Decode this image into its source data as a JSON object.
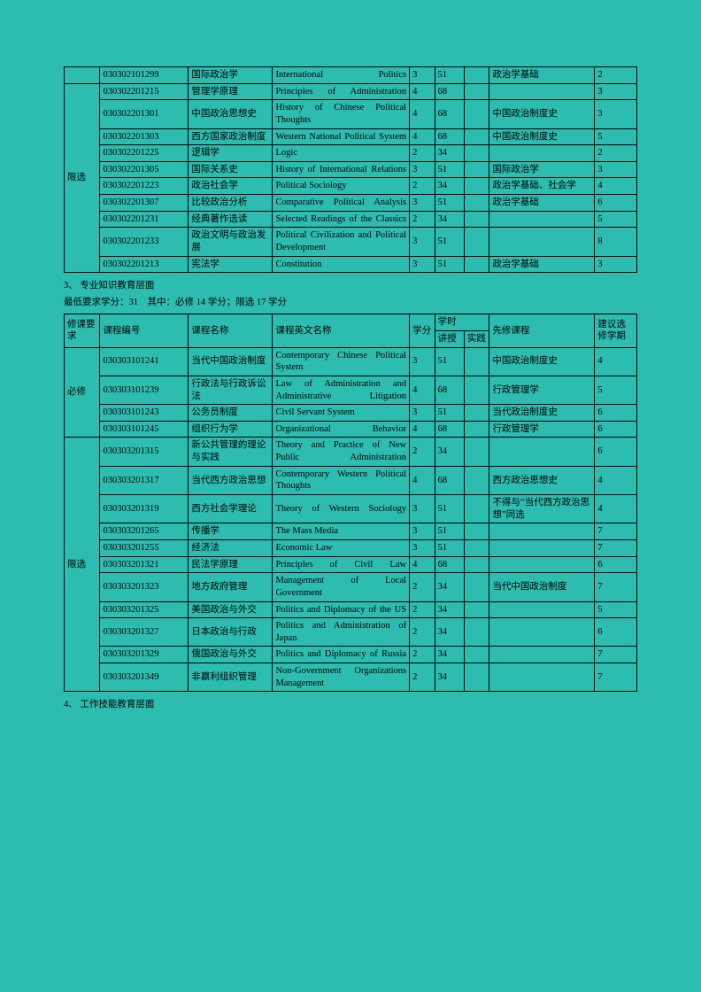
{
  "table1": {
    "rows": [
      {
        "cat": "",
        "code": "030302101299",
        "cn": "国际政治学",
        "en": "International Politics",
        "credit": "3",
        "hours": "51",
        "pra": "",
        "pre": "政治学基础",
        "sem": "2"
      },
      {
        "cat": "限选",
        "catspan": 10,
        "code": "030302201215",
        "cn": "管理学原理",
        "en": "Principles of Administration",
        "credit": "4",
        "hours": "68",
        "pra": "",
        "pre": "",
        "sem": "3"
      },
      {
        "code": "030302201301",
        "cn": "中国政治思想史",
        "en": "History of Chinese Political Thoughts",
        "credit": "4",
        "hours": "68",
        "pra": "",
        "pre": "中国政治制度史",
        "sem": "3"
      },
      {
        "code": "030302201303",
        "cn": "西方国家政治制度",
        "en": "Western National Political System",
        "credit": "4",
        "hours": "68",
        "pra": "",
        "pre": "中国政治制度史",
        "sem": "5"
      },
      {
        "code": "030302201225",
        "cn": "逻辑学",
        "en": "Logic",
        "credit": "2",
        "hours": "34",
        "pra": "",
        "pre": "",
        "sem": "2",
        "enLeft": true
      },
      {
        "code": "030302201305",
        "cn": "国际关系史",
        "en": "History of International Relations",
        "credit": "3",
        "hours": "51",
        "pra": "",
        "pre": "国际政治学",
        "sem": "3"
      },
      {
        "code": "030302201223",
        "cn": "政治社会学",
        "en": "Political Sociology",
        "credit": "2",
        "hours": "34",
        "pra": "",
        "pre": "政治学基础、社会学",
        "sem": "4",
        "enLeft": true
      },
      {
        "code": "030302201307",
        "cn": "比较政治分析",
        "en": "Comparative Political Analysis",
        "credit": "3",
        "hours": "51",
        "pra": "",
        "pre": "政治学基础",
        "sem": "6"
      },
      {
        "code": "030302201231",
        "cn": "经典著作选读",
        "en": "Selected Readings of the Classics",
        "credit": "2",
        "hours": "34",
        "pra": "",
        "pre": "",
        "sem": "5"
      },
      {
        "code": "030302201233",
        "cn": "政治文明与政治发展",
        "en": "Political Civilization and Political Development",
        "credit": "3",
        "hours": "51",
        "pra": "",
        "pre": "",
        "sem": "8"
      },
      {
        "code": "030302201213",
        "cn": "宪法学",
        "en": "Constitution",
        "credit": "3",
        "hours": "51",
        "pra": "",
        "pre": "政治学基础",
        "sem": "3",
        "enLeft": true
      }
    ]
  },
  "section3": "3、 专业知识教育层面",
  "reqline": "最低要求学分：31 其中：必修 14 学分；限选 17 学分",
  "headers": {
    "req": "修课要求",
    "code": "课程编号",
    "cn": "课程名称",
    "en": "课程英文名称",
    "credit": "学分",
    "hours": "学时",
    "lec": "讲授",
    "pra": "实践",
    "pre": "先修课程",
    "sem": "建议选修学期"
  },
  "table2": {
    "rows": [
      {
        "cat": "必修",
        "catspan": 4,
        "code": "030303101241",
        "cn": "当代中国政治制度",
        "en": "Contemporary Chinese Political System",
        "credit": "3",
        "hours": "51",
        "pra": "",
        "pre": "中国政治制度史",
        "sem": "4"
      },
      {
        "code": "030303101239",
        "cn": "行政法与行政诉讼法",
        "en": "Law of Administration and Administrative Litigation",
        "credit": "4",
        "hours": "68",
        "pra": "",
        "pre": "行政管理学",
        "sem": "5"
      },
      {
        "code": "030303101243",
        "cn": "公务员制度",
        "en": "Civil Servant System",
        "credit": "3",
        "hours": "51",
        "pra": "",
        "pre": "当代政治制度史",
        "sem": "6",
        "enLeft": true
      },
      {
        "code": "030303101245",
        "cn": "组织行为学",
        "en": "Organizational Behavior",
        "credit": "4",
        "hours": "68",
        "pra": "",
        "pre": "行政管理学",
        "sem": "6"
      },
      {
        "cat": "限选",
        "catspan": 11,
        "code": "030303201315",
        "cn": "新公共管理的理论与实践",
        "en": "Theory and Practice of New Public Administration",
        "credit": "2",
        "hours": "34",
        "pra": "",
        "pre": "",
        "sem": "6"
      },
      {
        "code": "030303201317",
        "cn": "当代西方政治思想",
        "en": "Contemporary Western Political Thoughts",
        "credit": "4",
        "hours": "68",
        "pra": "",
        "pre": "西方政治思想史",
        "sem": "4"
      },
      {
        "code": "030303201319",
        "cn": "西方社会学理论",
        "en": "Theory of Western Sociology",
        "credit": "3",
        "hours": "51",
        "pra": "",
        "pre": "不得与“当代西方政治思想”同选",
        "sem": "4"
      },
      {
        "code": "030303201265",
        "cn": "传播学",
        "en": "The Mass Media",
        "credit": "3",
        "hours": "51",
        "pra": "",
        "pre": "",
        "sem": "7",
        "enLeft": true
      },
      {
        "code": "030303201255",
        "cn": "经济法",
        "en": "Economic Law",
        "credit": "3",
        "hours": "51",
        "pra": "",
        "pre": "",
        "sem": "7",
        "enLeft": true
      },
      {
        "code": "030303201321",
        "cn": "民法学原理",
        "en": "Principles of Civil Law",
        "credit": "4",
        "hours": "68",
        "pra": "",
        "pre": "",
        "sem": "6"
      },
      {
        "code": "030303201323",
        "cn": "地方政府管理",
        "en": "Management of Local Government",
        "credit": "2",
        "hours": "34",
        "pra": "",
        "pre": "当代中国政治制度",
        "sem": "7"
      },
      {
        "code": "030303201325",
        "cn": "美国政治与外交",
        "en": "Politics and Diplomacy of the US",
        "credit": "2",
        "hours": "34",
        "pra": "",
        "pre": "",
        "sem": "5"
      },
      {
        "code": "030303201327",
        "cn": "日本政治与行政",
        "en": "Politics and Administration of Japan",
        "credit": "2",
        "hours": "34",
        "pra": "",
        "pre": "",
        "sem": "6"
      },
      {
        "code": "030303201329",
        "cn": "俄国政治与外交",
        "en": "Politics and Diplomacy of Russia",
        "credit": "2",
        "hours": "34",
        "pra": "",
        "pre": "",
        "sem": "7"
      },
      {
        "code": "030303201349",
        "cn": "非赢利组织管理",
        "en": "Non-Government Organizations Management",
        "credit": "2",
        "hours": "34",
        "pra": "",
        "pre": "",
        "sem": "7"
      }
    ]
  },
  "section4": "4、 工作技能教育层面"
}
